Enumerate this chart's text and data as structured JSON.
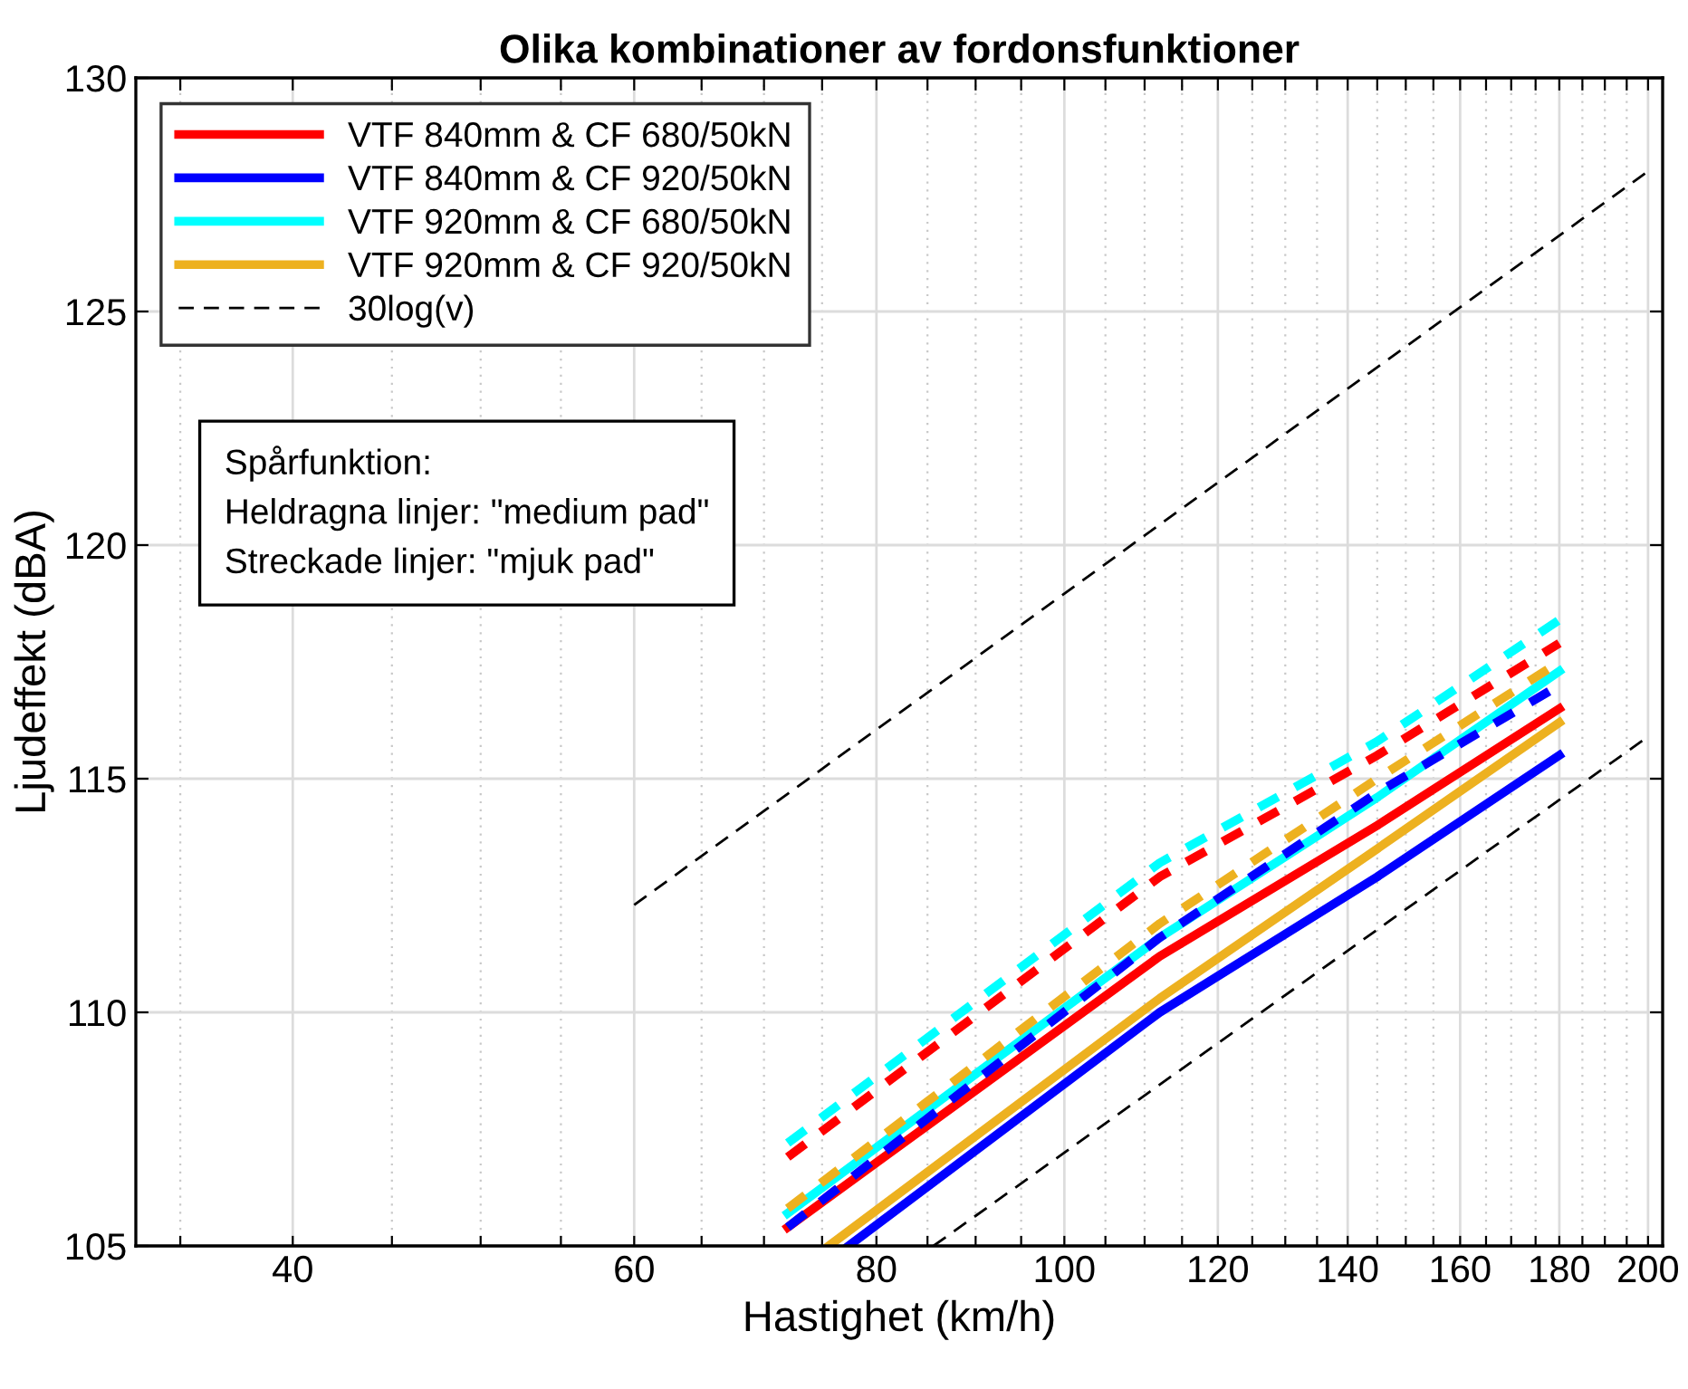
{
  "chart_data": {
    "type": "line",
    "title": "Olika kombinationer av fordonsfunktioner",
    "xlabel": "Hastighet (km/h)",
    "ylabel": "Ljudeffekt (dBA)",
    "log": "x",
    "xlim": [
      33.2,
      203.5
    ],
    "ylim": [
      105,
      130
    ],
    "yticks": [
      105,
      110,
      115,
      120,
      125,
      130
    ],
    "xticks": [
      {
        "value": 35,
        "label": null
      },
      40,
      {
        "value": 45,
        "label": null
      },
      {
        "value": 50,
        "label": null
      },
      {
        "value": 55,
        "label": null
      },
      60,
      {
        "value": 65,
        "label": null
      },
      {
        "value": 70,
        "label": null
      },
      {
        "value": 75,
        "label": null
      },
      80,
      {
        "value": 85,
        "label": null
      },
      {
        "value": 90,
        "label": null
      },
      {
        "value": 95,
        "label": null
      },
      100,
      {
        "value": 105,
        "label": null
      },
      {
        "value": 110,
        "label": null
      },
      {
        "value": 115,
        "label": null
      },
      120,
      {
        "value": 125,
        "label": null
      },
      {
        "value": 130,
        "label": null
      },
      {
        "value": 135,
        "label": null
      },
      140,
      {
        "value": 145,
        "label": null
      },
      {
        "value": 150,
        "label": null
      },
      {
        "value": 155,
        "label": null
      },
      160,
      {
        "value": 165,
        "label": null
      },
      {
        "value": 170,
        "label": null
      },
      {
        "value": 175,
        "label": null
      },
      180,
      {
        "value": 185,
        "label": null
      },
      {
        "value": 190,
        "label": null
      },
      {
        "value": 195,
        "label": null
      },
      200
    ],
    "grid": true,
    "legend": "top left",
    "marker": "none",
    "annotations": [
      "Spårfunktion:\nHeldragna linjer: \"medium pad\"\nStreckade linjer: \"mjuk pad\""
    ],
    "series": [
      {
        "name": "VTF 840mm & CF 680/50kN",
        "color": "#ff0000",
        "line_style": "solid",
        "x": [
          72,
          112,
          145,
          180
        ],
        "values": [
          105.4,
          111.2,
          114.0,
          116.5
        ]
      },
      {
        "name": "VTF 840mm & CF 920/50kN",
        "color": "#0000ff",
        "line_style": "solid",
        "x": [
          77.4,
          112,
          145,
          180
        ],
        "values": [
          105.0,
          110.0,
          112.9,
          115.5
        ]
      },
      {
        "name": "VTF 920mm & CF 680/50kN",
        "color": "#00ffff",
        "line_style": "solid",
        "x": [
          72,
          112,
          145,
          180
        ],
        "values": [
          105.7,
          111.6,
          114.6,
          117.3
        ]
      },
      {
        "name": "VTF 920mm & CF 920/50kN",
        "color": "#edb120",
        "line_style": "solid",
        "x": [
          75.6,
          112,
          145,
          180
        ],
        "values": [
          105.0,
          110.3,
          113.5,
          116.2
        ]
      },
      {
        "name": "30log(v)",
        "color": "#000000",
        "line_style": "dashed",
        "x": [
          60,
          200
        ],
        "values": [
          112.3,
          128.0
        ]
      },
      {
        "color": "#000000",
        "line_style": "dashed",
        "x": [
          85.6,
          200
        ],
        "values": [
          105.0,
          115.9
        ]
      },
      {
        "color": "#ff0000",
        "line_style": "dashed",
        "x": [
          72,
          112,
          145,
          180
        ],
        "values": [
          106.9,
          112.9,
          115.5,
          117.9
        ]
      },
      {
        "color": "#0000ff",
        "line_style": "dashed",
        "x": [
          72,
          112,
          145,
          180
        ],
        "values": [
          105.4,
          111.6,
          114.7,
          117.0
        ]
      },
      {
        "color": "#00ffff",
        "line_style": "dashed",
        "x": [
          72,
          112,
          145,
          180
        ],
        "values": [
          107.2,
          113.2,
          115.8,
          118.4
        ]
      },
      {
        "color": "#edb120",
        "line_style": "dashed",
        "x": [
          72,
          112,
          145,
          180
        ],
        "values": [
          105.8,
          111.9,
          115.0,
          117.5
        ]
      }
    ]
  }
}
